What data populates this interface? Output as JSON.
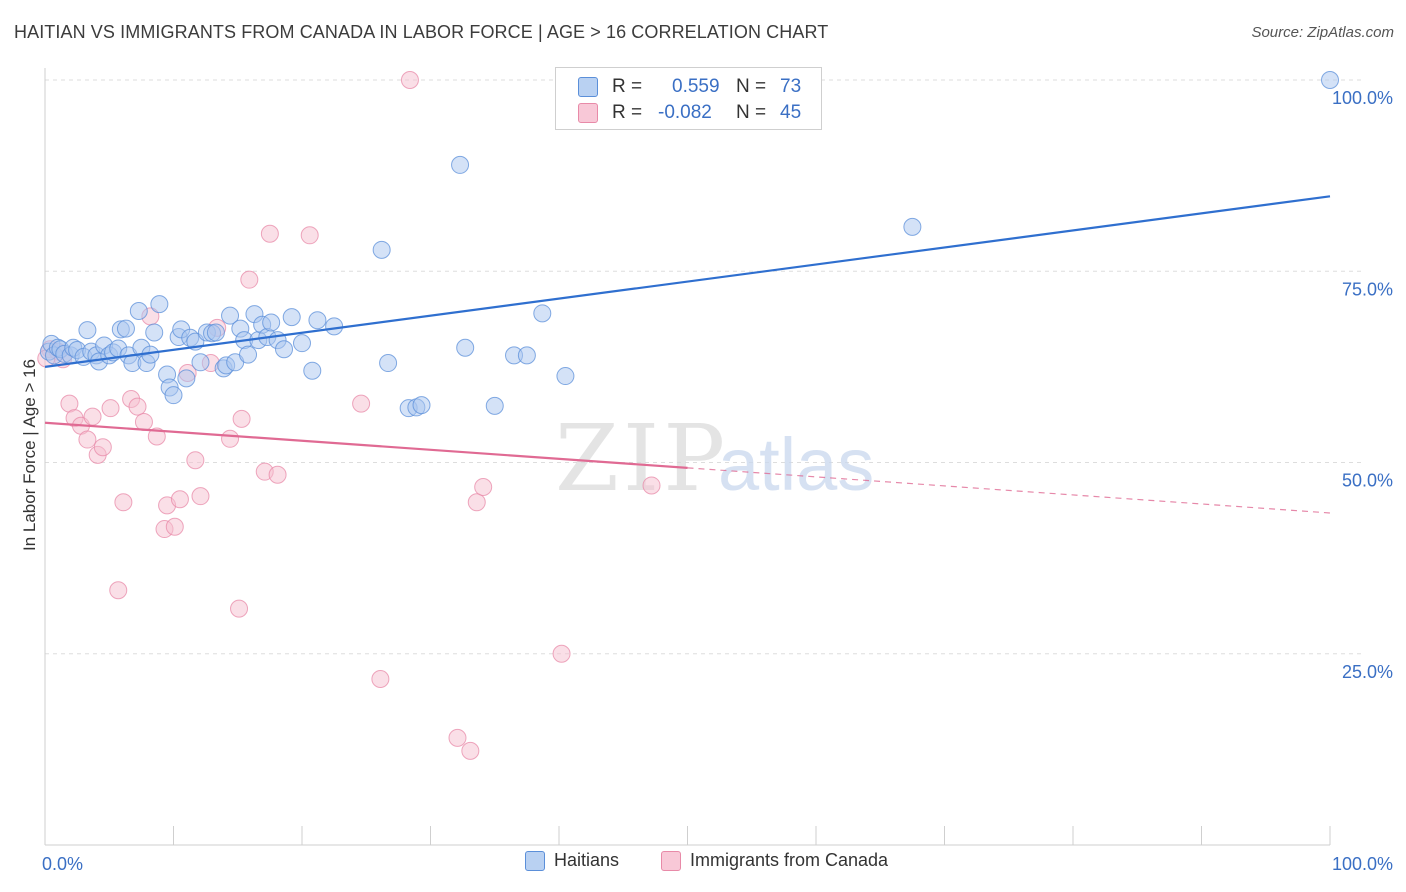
{
  "title": "HAITIAN VS IMMIGRANTS FROM CANADA IN LABOR FORCE | AGE > 16 CORRELATION CHART",
  "source": "Source: ZipAtlas.com",
  "watermark": {
    "zip": "ZIP",
    "atlas": "atlas"
  },
  "colors": {
    "blue": "#5b8fd9",
    "blue_fill": "#a9c6ef",
    "blue_line": "#2f6fcf",
    "pink": "#e88aa8",
    "pink_fill": "#f6bfd0",
    "pink_line": "#e06a93",
    "axis_label": "#3a6fc4"
  },
  "stats": {
    "row1": {
      "r_label": "R =",
      "r_value": "0.559",
      "n_label": "N =",
      "n_value": "73"
    },
    "row2": {
      "r_label": "R =",
      "r_value": "-0.082",
      "n_label": "N =",
      "n_value": "45"
    }
  },
  "legend": {
    "haitians": "Haitians",
    "canada": "Immigrants from Canada"
  },
  "chart_data": {
    "type": "scatter",
    "title": "HAITIAN VS IMMIGRANTS FROM CANADA IN LABOR FORCE | AGE > 16 CORRELATION CHART",
    "xlabel": "",
    "ylabel": "In Labor Force | Age > 16",
    "xlim": [
      0,
      100
    ],
    "ylim": [
      0,
      102
    ],
    "x_tick_labels": [
      "0.0%",
      "100.0%"
    ],
    "y_ticks": [
      25,
      50,
      75,
      100
    ],
    "y_tick_labels": [
      "25.0%",
      "50.0%",
      "75.0%",
      "100.0%"
    ],
    "grid": "horizontal dashed",
    "legend_position": "bottom",
    "series": [
      {
        "name": "Haitians",
        "color": "#5b8fd9",
        "points": [
          [
            0.3,
            64.5
          ],
          [
            0.5,
            65.5
          ],
          [
            0.7,
            64.0
          ],
          [
            1.0,
            65.0
          ],
          [
            1.2,
            64.8
          ],
          [
            1.5,
            64.2
          ],
          [
            2.0,
            64.0
          ],
          [
            2.2,
            65.0
          ],
          [
            2.5,
            64.7
          ],
          [
            3.0,
            63.8
          ],
          [
            3.3,
            67.3
          ],
          [
            3.6,
            64.5
          ],
          [
            4.0,
            64.0
          ],
          [
            4.2,
            63.2
          ],
          [
            4.6,
            65.3
          ],
          [
            5.0,
            64.0
          ],
          [
            5.3,
            64.4
          ],
          [
            5.7,
            64.9
          ],
          [
            5.9,
            67.4
          ],
          [
            6.3,
            67.5
          ],
          [
            6.5,
            64.0
          ],
          [
            6.8,
            63.0
          ],
          [
            7.3,
            69.8
          ],
          [
            7.5,
            65.0
          ],
          [
            7.9,
            63.0
          ],
          [
            8.2,
            64.1
          ],
          [
            8.5,
            67.0
          ],
          [
            8.9,
            70.7
          ],
          [
            9.5,
            61.5
          ],
          [
            9.7,
            59.8
          ],
          [
            10.0,
            58.8
          ],
          [
            10.4,
            66.4
          ],
          [
            10.6,
            67.4
          ],
          [
            11.0,
            61.0
          ],
          [
            11.3,
            66.3
          ],
          [
            11.7,
            65.8
          ],
          [
            12.1,
            63.1
          ],
          [
            12.6,
            67.0
          ],
          [
            13.0,
            66.9
          ],
          [
            13.3,
            67.0
          ],
          [
            13.9,
            62.3
          ],
          [
            14.1,
            62.7
          ],
          [
            14.4,
            69.2
          ],
          [
            14.8,
            63.1
          ],
          [
            15.2,
            67.5
          ],
          [
            15.5,
            66.0
          ],
          [
            15.8,
            64.1
          ],
          [
            16.3,
            69.4
          ],
          [
            16.6,
            66.0
          ],
          [
            16.9,
            68.0
          ],
          [
            17.3,
            66.4
          ],
          [
            17.6,
            68.3
          ],
          [
            18.1,
            66.0
          ],
          [
            18.6,
            64.8
          ],
          [
            19.2,
            69.0
          ],
          [
            20.0,
            65.6
          ],
          [
            20.8,
            62.0
          ],
          [
            21.2,
            68.6
          ],
          [
            22.5,
            67.8
          ],
          [
            26.2,
            77.8
          ],
          [
            26.7,
            63.0
          ],
          [
            28.3,
            57.1
          ],
          [
            28.9,
            57.2
          ],
          [
            29.3,
            57.5
          ],
          [
            32.3,
            88.9
          ],
          [
            32.7,
            65.0
          ],
          [
            35.0,
            57.4
          ],
          [
            36.5,
            64.0
          ],
          [
            37.5,
            64.0
          ],
          [
            38.7,
            69.5
          ],
          [
            40.5,
            61.3
          ],
          [
            67.5,
            80.8
          ],
          [
            100.0,
            100.0
          ]
        ],
        "trend": {
          "x": [
            0,
            100
          ],
          "y": [
            62.5,
            84.8
          ],
          "style": "solid"
        }
      },
      {
        "name": "Immigrants from Canada",
        "color": "#e88aa8",
        "points": [
          [
            0.4,
            64.8
          ],
          [
            1.0,
            64.5
          ],
          [
            1.4,
            63.5
          ],
          [
            1.9,
            57.7
          ],
          [
            2.3,
            55.8
          ],
          [
            2.8,
            54.8
          ],
          [
            3.3,
            53.0
          ],
          [
            3.7,
            56.0
          ],
          [
            4.1,
            51.0
          ],
          [
            4.5,
            52.0
          ],
          [
            5.1,
            57.1
          ],
          [
            5.7,
            33.3
          ],
          [
            6.1,
            44.8
          ],
          [
            6.7,
            58.3
          ],
          [
            7.2,
            57.3
          ],
          [
            7.7,
            55.3
          ],
          [
            8.2,
            69.1
          ],
          [
            8.7,
            53.4
          ],
          [
            9.3,
            41.3
          ],
          [
            9.5,
            44.4
          ],
          [
            10.1,
            41.6
          ],
          [
            10.5,
            45.2
          ],
          [
            11.1,
            61.7
          ],
          [
            11.7,
            50.3
          ],
          [
            12.1,
            45.6
          ],
          [
            12.9,
            63.0
          ],
          [
            13.4,
            67.6
          ],
          [
            14.4,
            53.1
          ],
          [
            15.1,
            30.9
          ],
          [
            15.3,
            55.7
          ],
          [
            15.9,
            73.9
          ],
          [
            17.1,
            48.8
          ],
          [
            17.5,
            79.9
          ],
          [
            18.1,
            48.4
          ],
          [
            20.6,
            79.7
          ],
          [
            24.6,
            57.7
          ],
          [
            26.1,
            21.7
          ],
          [
            28.4,
            100.0
          ],
          [
            32.1,
            14.0
          ],
          [
            33.1,
            12.3
          ],
          [
            33.6,
            44.8
          ],
          [
            34.1,
            46.8
          ],
          [
            40.2,
            25.0
          ],
          [
            47.2,
            47.0
          ],
          [
            0.1,
            63.6
          ]
        ],
        "trend": {
          "x": [
            0,
            50
          ],
          "y": [
            55.2,
            49.3
          ],
          "style": "solid",
          "extension": {
            "x": [
              50,
              100
            ],
            "y": [
              49.3,
              43.4
            ],
            "style": "dashed"
          }
        }
      }
    ]
  }
}
